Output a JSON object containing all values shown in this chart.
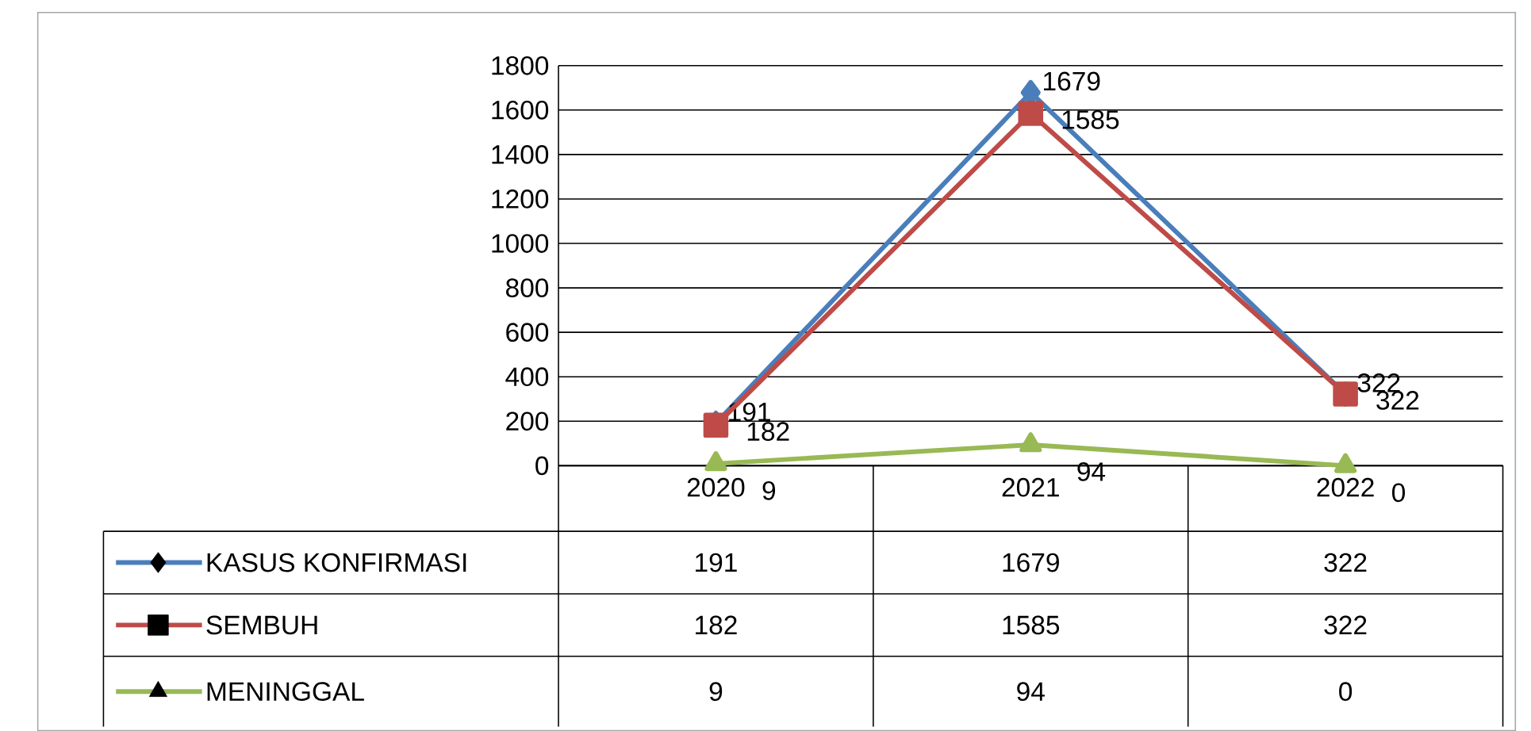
{
  "chart_data": {
    "type": "line",
    "categories": [
      "2020",
      "2021",
      "2022"
    ],
    "series": [
      {
        "name": "KASUS KONFIRMASI",
        "color": "#4a7ebb",
        "marker": "diamond",
        "values": [
          191,
          1679,
          322
        ],
        "value_labels": [
          "191",
          "1679",
          "322"
        ]
      },
      {
        "name": "SEMBUH",
        "color": "#be4b48",
        "marker": "square",
        "values": [
          182,
          1585,
          322
        ],
        "value_labels": [
          "182",
          "1585",
          "322"
        ]
      },
      {
        "name": "MENINGGAL",
        "color": "#98b954",
        "marker": "triangle",
        "values": [
          9,
          94,
          0
        ],
        "value_labels": [
          "9",
          "94",
          "0"
        ]
      }
    ],
    "ylim": [
      0,
      1800
    ],
    "yticks": [
      0,
      200,
      400,
      600,
      800,
      1000,
      1200,
      1400,
      1600,
      1800
    ],
    "grid": "y",
    "data_labels": true,
    "legend": "bottom left"
  }
}
